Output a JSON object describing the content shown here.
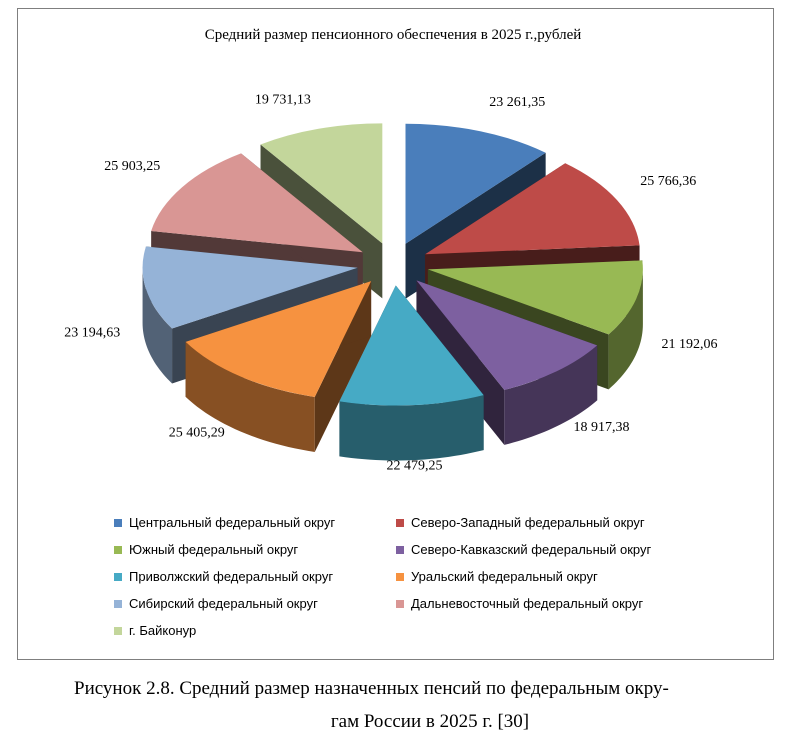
{
  "chart_data": {
    "type": "pie",
    "title": "Средний размер пенсионного обеспечения в 2025 г.,рублей",
    "categories": [
      "Центральный федеральный округ",
      "Северо-Западный федеральный округ",
      "Южный федеральный округ",
      "Северо-Кавказский федеральный округ",
      "Приволжский федеральный округ",
      "Уральский федеральный округ",
      "Сибирский федеральный округ",
      "Дальневосточный федеральный округ",
      "г. Байконур"
    ],
    "values": [
      23261.35,
      25766.36,
      21192.06,
      18917.38,
      22479.25,
      25405.29,
      23194.63,
      25903.25,
      19731.13
    ],
    "value_labels": [
      "23 261,35",
      "25 766,36",
      "21 192,06",
      "18 917,38",
      "22 479,25",
      "25 405,29",
      "23 194,63",
      "25 903,25",
      "19 731,13"
    ],
    "colors": [
      "#4a7ebb",
      "#be4b48",
      "#98b954",
      "#7d60a0",
      "#46aac5",
      "#f69240",
      "#95b3d7",
      "#d99694",
      "#c3d69b"
    ],
    "exploded": true,
    "three_d": true,
    "legend_position": "bottom"
  },
  "caption": {
    "line1": "Рисунок 2.8. Средний размер назначенных пенсий по федеральным окру-",
    "line2": "гам России в 2025 г. [30]"
  }
}
